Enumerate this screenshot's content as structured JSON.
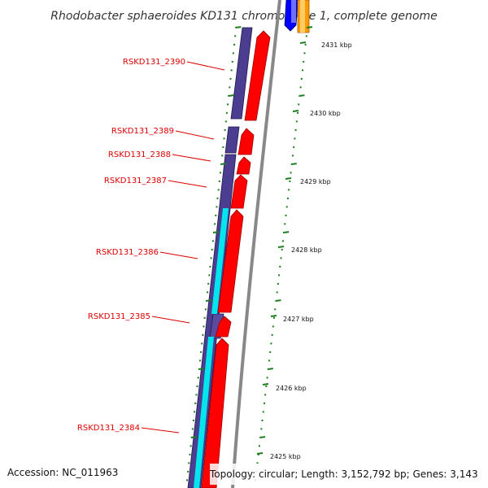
{
  "title": "Rhodobacter sphaeroides KD131 chromosome 1, complete genome",
  "accession": "Accession: NC_011963",
  "topology": "Topology: circular; Length: 3,152,792 bp; Genes: 3,143",
  "colors": {
    "cds_forward": "#ff0000",
    "cds_reverse": "#4b3d8f",
    "gc_skew": "#00e5ee",
    "tick_marks": "#1e7d1e",
    "backbone": "#888888",
    "label": "#dd0000",
    "top_blue": "#0000ff",
    "top_orange": "#ff9900"
  },
  "genes": [
    "RSKD131_2390",
    "RSKD131_2389",
    "RSKD131_2388",
    "RSKD131_2387",
    "RSKD131_2386",
    "RSKD131_2385",
    "RSKD131_2384"
  ],
  "scale_ticks": [
    "2431 kbp",
    "2430 kbp",
    "2429 kbp",
    "2428 kbp",
    "2427 kbp",
    "2426 kbp",
    "2425 kbp"
  ]
}
